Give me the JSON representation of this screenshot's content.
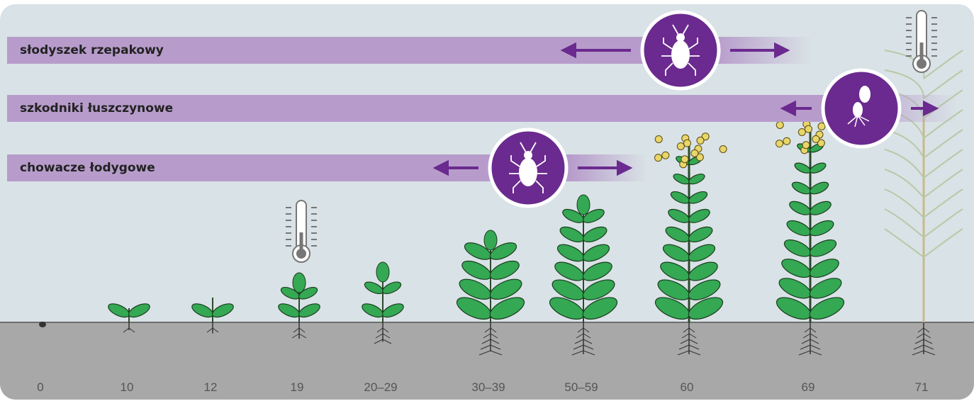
{
  "pests": [
    {
      "label": "słodyszek rzepakowy"
    },
    {
      "label": "szkodniki łuszczynowe"
    },
    {
      "label": "chowacze łodygowe"
    }
  ],
  "stages": [
    "0",
    "10",
    "12",
    "19",
    "20–29",
    "30–39",
    "50–59",
    "60",
    "69",
    "71"
  ]
}
